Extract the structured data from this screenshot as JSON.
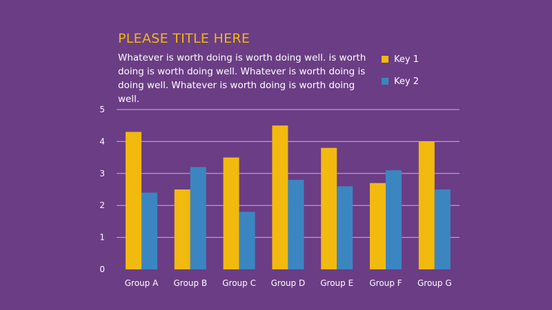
{
  "colors": {
    "background": "#6b3d85",
    "key1": "#f2b90f",
    "key2": "#3b86c0",
    "title": "#f2b90f",
    "grid": "#c9b2dc"
  },
  "chart_data": {
    "type": "bar",
    "title": "PLEASE TITLE HERE",
    "subtitle": "Whatever is worth doing is worth doing well. is worth doing is worth doing well. Whatever is worth doing is doing well. Whatever is worth doing is worth doing well.",
    "categories": [
      "Group A",
      "Group B",
      "Group C",
      "Group D",
      "Group E",
      "Group F",
      "Group G"
    ],
    "series": [
      {
        "name": "Key 1",
        "values": [
          4.3,
          2.5,
          3.5,
          4.5,
          3.8,
          2.7,
          4.0
        ]
      },
      {
        "name": "Key 2",
        "values": [
          2.4,
          3.2,
          1.8,
          2.8,
          2.6,
          3.1,
          2.5
        ]
      }
    ],
    "yticks": [
      "0",
      "1",
      "2",
      "3",
      "4",
      "5"
    ],
    "ylim": [
      0,
      5
    ],
    "grid": true,
    "legend": "top-right"
  }
}
